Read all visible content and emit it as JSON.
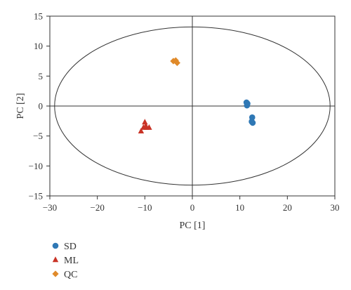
{
  "chart_data": {
    "type": "scatter",
    "xlabel": "PC [1]",
    "ylabel": "PC [2]",
    "xlim": [
      -30,
      30
    ],
    "ylim": [
      -15,
      15
    ],
    "xticks": [
      -30,
      -20,
      -10,
      0,
      10,
      20,
      30
    ],
    "yticks": [
      -15,
      -10,
      -5,
      0,
      5,
      10,
      15
    ],
    "xtick_labels": [
      "−30",
      "−20",
      "−10",
      "0",
      "10",
      "20",
      "30"
    ],
    "ytick_labels": [
      "−15",
      "−10",
      "−5",
      "0",
      "5",
      "10",
      "15"
    ],
    "grid": false,
    "legend_position": "bottom-left",
    "confidence_ellipse": {
      "center": [
        0,
        0
      ],
      "x_radius": 29,
      "y_radius": 13.2
    },
    "series": [
      {
        "name": "SD",
        "marker": "circle",
        "color": "#2f78b5",
        "x": [
          11.4,
          11.6,
          11.5,
          12.6,
          12.5,
          12.7
        ],
        "y": [
          0.6,
          0.4,
          0.1,
          -1.9,
          -2.6,
          -2.8
        ]
      },
      {
        "name": "ML",
        "marker": "triangle",
        "color": "#c93326",
        "x": [
          -10.8,
          -10.3,
          -9.8,
          -9.6,
          -9.1,
          -10.0
        ],
        "y": [
          -4.2,
          -3.6,
          -3.3,
          -3.6,
          -3.6,
          -2.7
        ]
      },
      {
        "name": "QC",
        "marker": "diamond",
        "color": "#e08a2a",
        "x": [
          -4.0,
          -3.5,
          -3.2
        ],
        "y": [
          7.5,
          7.6,
          7.2
        ]
      }
    ]
  }
}
